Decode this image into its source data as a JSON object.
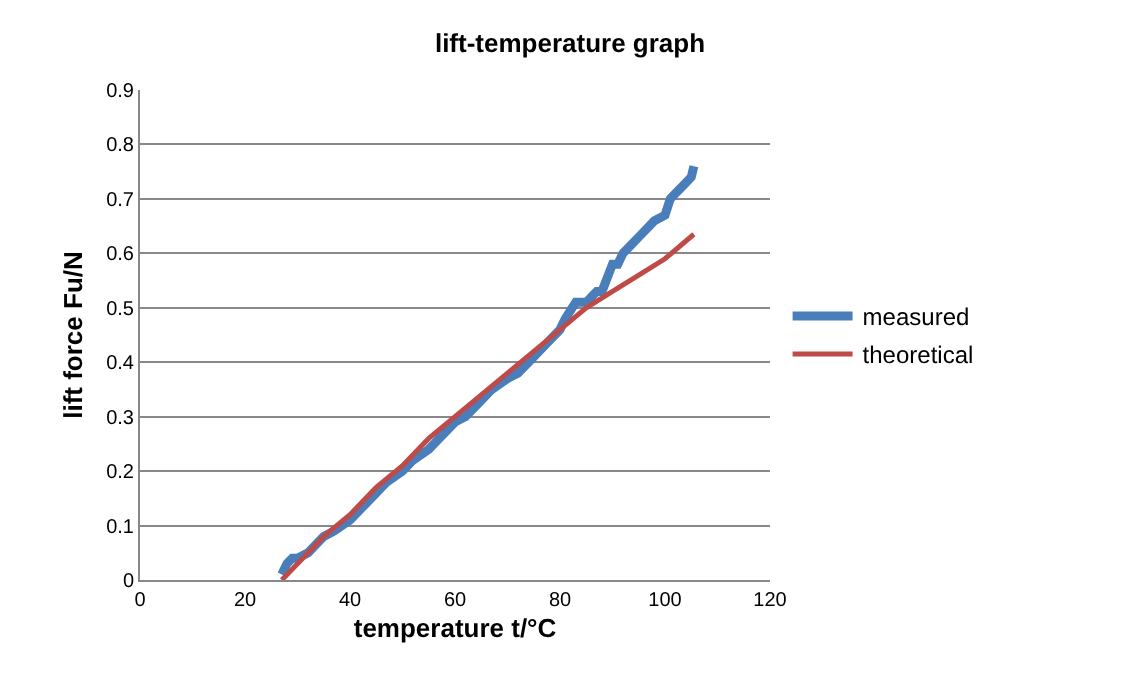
{
  "chart_data": {
    "type": "line",
    "title": "lift-temperature graph",
    "xlabel": "temperature t/°C",
    "ylabel": "lift force Fu/N",
    "xlim": [
      0,
      120
    ],
    "xticks": [
      0,
      20,
      40,
      60,
      80,
      100,
      120
    ],
    "ylim": [
      0,
      0.9
    ],
    "yticks": [
      0,
      0.1,
      0.2,
      0.3,
      0.4,
      0.5,
      0.6,
      0.7,
      0.8,
      0.9
    ],
    "grid": "y",
    "legend": "right",
    "marker": "none",
    "line_style": "solid",
    "series": [
      {
        "name": "measured",
        "color": "#4a7ebb",
        "x": [
          27,
          28,
          29,
          30,
          32,
          34,
          35,
          37,
          40,
          42,
          44,
          45,
          47,
          50,
          52,
          55,
          57,
          60,
          62,
          65,
          67,
          70,
          72,
          75,
          77,
          80,
          81,
          83,
          85,
          86,
          87,
          88,
          90,
          91,
          92,
          93,
          95,
          97,
          98,
          100,
          101,
          102,
          104,
          105,
          105.5
        ],
        "values": [
          0.01,
          0.03,
          0.04,
          0.04,
          0.05,
          0.07,
          0.08,
          0.09,
          0.11,
          0.13,
          0.15,
          0.16,
          0.18,
          0.2,
          0.22,
          0.24,
          0.26,
          0.29,
          0.3,
          0.33,
          0.35,
          0.37,
          0.38,
          0.41,
          0.43,
          0.46,
          0.48,
          0.51,
          0.51,
          0.52,
          0.53,
          0.53,
          0.58,
          0.58,
          0.6,
          0.61,
          0.63,
          0.65,
          0.66,
          0.67,
          0.7,
          0.71,
          0.73,
          0.74,
          0.76
        ]
      },
      {
        "name": "theoretical",
        "color": "#be4b48",
        "x": [
          27,
          30,
          35,
          40,
          45,
          50,
          55,
          60,
          65,
          70,
          75,
          80,
          85,
          90,
          95,
          100,
          105.5
        ],
        "values": [
          0,
          0.03,
          0.08,
          0.12,
          0.17,
          0.21,
          0.26,
          0.3,
          0.34,
          0.38,
          0.42,
          0.46,
          0.5,
          0.53,
          0.56,
          0.59,
          0.635
        ]
      }
    ]
  }
}
